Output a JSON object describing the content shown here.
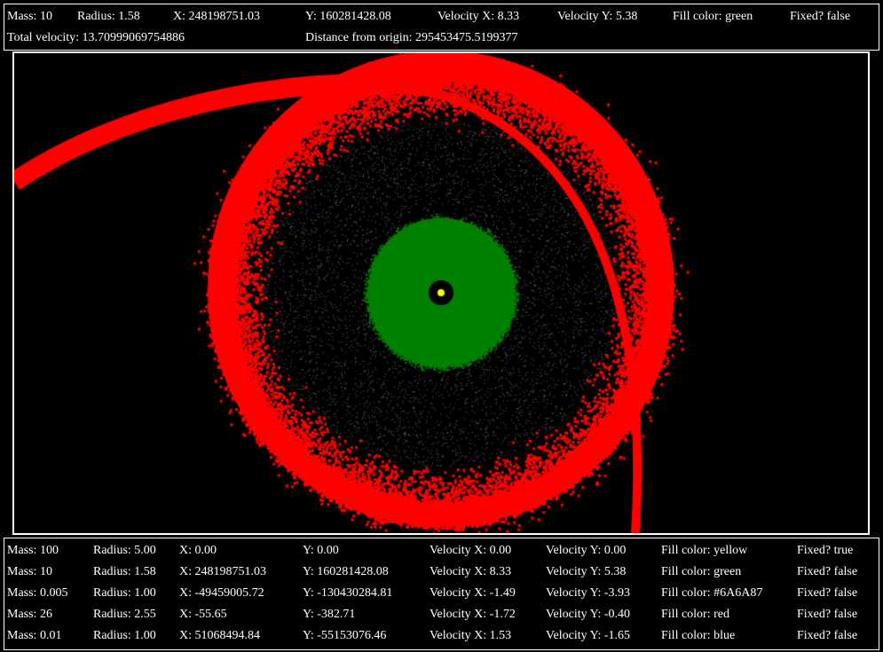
{
  "selected": {
    "mass": "Mass: 10",
    "radius": "Radius: 1.58",
    "x": "X: 248198751.03",
    "y": "Y: 160281428.08",
    "vx": "Velocity X: 8.33",
    "vy": "Velocity Y: 5.38",
    "fill": "Fill color: green",
    "fixed": "Fixed? false",
    "total_velocity": "Total velocity: 13.70999069754886",
    "distance": "Distance from origin: 295453475.5199377"
  },
  "bodies": [
    {
      "mass": "Mass: 100",
      "radius": "Radius: 5.00",
      "x": "X: 0.00",
      "y": "Y: 0.00",
      "vx": "Velocity X: 0.00",
      "vy": "Velocity Y: 0.00",
      "fill": "Fill color: yellow",
      "fixed": "Fixed? true"
    },
    {
      "mass": "Mass: 10",
      "radius": "Radius: 1.58",
      "x": "X: 248198751.03",
      "y": "Y: 160281428.08",
      "vx": "Velocity X: 8.33",
      "vy": "Velocity Y: 5.38",
      "fill": "Fill color: green",
      "fixed": "Fixed? false"
    },
    {
      "mass": "Mass: 0.005",
      "radius": "Radius: 1.00",
      "x": "X: -49459005.72",
      "y": "Y: -130430284.81",
      "vx": "Velocity X: -1.49",
      "vy": "Velocity Y: -3.93",
      "fill": "Fill color: #6A6A87",
      "fixed": "Fixed? false"
    },
    {
      "mass": "Mass: 26",
      "radius": "Radius: 2.55",
      "x": "X: -55.65",
      "y": "Y: -382.71",
      "vx": "Velocity X: -1.72",
      "vy": "Velocity Y: -0.40",
      "fill": "Fill color: red",
      "fixed": "Fixed? false"
    },
    {
      "mass": "Mass: 0.01",
      "radius": "Radius: 1.00",
      "x": "X: 51068494.84",
      "y": "Y: -55153076.46",
      "vx": "Velocity X: 1.53",
      "vy": "Velocity Y: -1.65",
      "fill": "Fill color: blue",
      "fixed": "Fixed? false"
    }
  ],
  "colors": {
    "background": "#000000",
    "sun": "#FFFF00",
    "green_cloud": "#008000",
    "grey_dust": "#6A6A87",
    "red_ring": "#FF0000"
  }
}
